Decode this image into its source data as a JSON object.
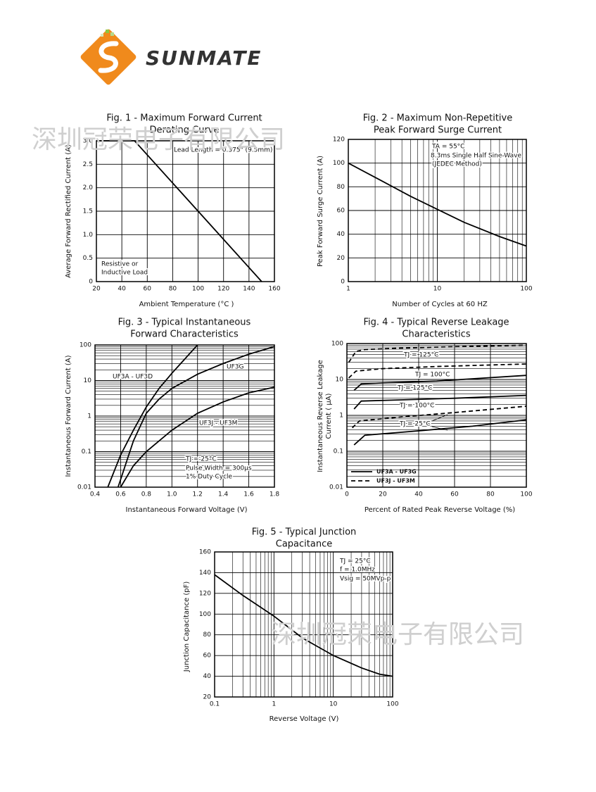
{
  "logo_text": "SUNMATE",
  "watermarks": [
    "深圳冠荣电子有限公司",
    "深圳冠荣电子有限公司"
  ],
  "chart_data": [
    {
      "type": "line",
      "title": [
        "Fig. 1 - Maximum Forward Current",
        "Derating Curve"
      ],
      "xlabel": "Ambient Temperature (°C )",
      "ylabel": "Average Forward Rectified Current (A)",
      "xlim": [
        20,
        160
      ],
      "ylim": [
        0,
        3
      ],
      "xticks": [
        20,
        40,
        60,
        80,
        100,
        120,
        140,
        160
      ],
      "yticks": [
        0,
        0.5,
        {
          "value": 1,
          "label": "1.0"
        },
        1.5,
        {
          "value": 2,
          "label": "2.0"
        },
        2.5,
        {
          "value": 3,
          "label": "3.0"
        }
      ],
      "grid": true,
      "annotations": [
        "Lead Length = 0.375\" (9.5mm)",
        "Resistive or",
        "Inductive Load"
      ],
      "series": [
        {
          "color": "#000000",
          "x": [
            20,
            50,
            150
          ],
          "values": [
            3,
            3,
            0
          ]
        }
      ]
    },
    {
      "type": "line",
      "title": [
        "Fig. 2 - Maximum Non-Repetitive",
        "Peak Forward Surge Current"
      ],
      "xlabel": "Number of Cycles at 60 HZ",
      "ylabel": "Peak Forward Surge Current (A)",
      "xscale": "log",
      "xlim": [
        1,
        100
      ],
      "ylim": [
        0,
        120
      ],
      "xticks": [
        1,
        10,
        100
      ],
      "yticks": [
        0,
        20,
        40,
        60,
        80,
        100,
        120
      ],
      "grid": true,
      "minor_grid": true,
      "annotations": [
        "TA = 55°C",
        "8.3ms Single Half Sine-Wave",
        "(JEDEC Method)"
      ],
      "series": [
        {
          "color": "#000000",
          "x": [
            1,
            2,
            5,
            10,
            20,
            50,
            100
          ],
          "values": [
            100,
            88,
            72,
            61,
            50,
            38,
            30
          ]
        }
      ]
    },
    {
      "type": "line",
      "title": [
        "Fig. 3 - Typical Instantaneous",
        "Forward Characteristics"
      ],
      "xlabel": "Instantaneous Forward Voltage (V)",
      "ylabel": "Instantaneous Forward Current (A)",
      "yscale": "log",
      "xlim": [
        0.4,
        1.8
      ],
      "ylim": [
        0.01,
        100
      ],
      "xticks": [
        0.4,
        0.6,
        0.8,
        {
          "value": 1,
          "label": "1.0"
        },
        1.2,
        1.4,
        1.6,
        1.8
      ],
      "yticks": [
        0.01,
        0.1,
        1,
        10,
        100
      ],
      "grid": true,
      "minor_grid": true,
      "annotations": [
        "TJ = 25°C",
        "Pulse Width = 300μs",
        "1% Duty Cycle"
      ],
      "series": [
        {
          "name": "UF3A - UF3D",
          "color": "#000000",
          "x": [
            0.5,
            0.6,
            0.7,
            0.8,
            0.9,
            1.0,
            1.1,
            1.2
          ],
          "values": [
            0.01,
            0.08,
            0.4,
            1.8,
            6,
            16,
            40,
            100
          ]
        },
        {
          "name": "UF3G",
          "color": "#000000",
          "x": [
            0.58,
            0.7,
            0.8,
            0.9,
            1.0,
            1.2,
            1.4,
            1.6,
            1.8
          ],
          "values": [
            0.01,
            0.2,
            1.2,
            3,
            6,
            15,
            30,
            55,
            90
          ]
        },
        {
          "name": "UF3J - UF3M",
          "color": "#000000",
          "x": [
            0.6,
            0.7,
            0.8,
            1.0,
            1.2,
            1.4,
            1.6,
            1.8
          ],
          "values": [
            0.01,
            0.04,
            0.1,
            0.4,
            1.2,
            2.5,
            4.5,
            6.5
          ]
        }
      ]
    },
    {
      "type": "line",
      "title": [
        "Fig. 4 - Typical Reverse Leakage",
        "Characteristics"
      ],
      "xlabel": "Percent of Rated Peak Reverse Voltage (%)",
      "ylabel": [
        "Instantaneous Reverse Leakage",
        "Current ( μA)"
      ],
      "yscale": "log",
      "xlim": [
        0,
        100
      ],
      "ylim": [
        0.01,
        100
      ],
      "xticks": [
        0,
        20,
        40,
        60,
        80,
        100
      ],
      "yticks": [
        0.01,
        0.1,
        1,
        10,
        100
      ],
      "grid": true,
      "minor_grid": true,
      "legend": "lower-left",
      "series": [
        {
          "name": "UF3A - UF3G",
          "color": "#000000",
          "dash": false,
          "curves": [
            {
              "label": "TJ = 125°C",
              "x": [
                4,
                8,
                20,
                50,
                100
              ],
              "values": [
                5,
                7.5,
                8,
                9,
                13
              ]
            },
            {
              "label": "TJ = 100°C",
              "x": [
                4,
                8,
                30,
                60,
                100
              ],
              "values": [
                1.5,
                2.5,
                2.7,
                3,
                3.6
              ]
            },
            {
              "x": [
                4,
                10,
                40,
                70,
                100
              ],
              "values": [
                0.15,
                0.28,
                0.37,
                0.5,
                0.75
              ]
            }
          ]
        },
        {
          "name": "UF3J - UF3M",
          "color": "#000000",
          "dash": true,
          "curves": [
            {
              "label": "TJ = 125°C",
              "x": [
                1,
                5,
                10,
                30,
                60,
                100
              ],
              "values": [
                30,
                60,
                68,
                75,
                82,
                90
              ]
            },
            {
              "label": "TJ = 100°C",
              "x": [
                1,
                5,
                20,
                50,
                100
              ],
              "values": [
                11,
                17,
                20,
                23,
                27
              ]
            },
            {
              "label": "TJ = 25°C",
              "x": [
                3,
                7,
                30,
                60,
                100
              ],
              "values": [
                0.45,
                0.7,
                0.9,
                1.2,
                1.8
              ]
            }
          ]
        }
      ]
    },
    {
      "type": "line",
      "title": [
        "Fig. 5 - Typical Junction",
        "Capacitance"
      ],
      "xlabel": "Reverse Voltage (V)",
      "ylabel": "Junction Capacitance (pF)",
      "xscale": "log",
      "xlim": [
        0.1,
        100
      ],
      "ylim": [
        20,
        160
      ],
      "xticks": [
        0.1,
        1,
        10,
        100
      ],
      "yticks": [
        20,
        40,
        60,
        80,
        100,
        120,
        140,
        160
      ],
      "grid": true,
      "minor_grid": true,
      "annotations": [
        "TJ = 25°C",
        "f = 1.0MHz",
        "Vsig = 50MVp-p"
      ],
      "series": [
        {
          "color": "#000000",
          "x": [
            0.1,
            0.3,
            1,
            3,
            10,
            30,
            60,
            100
          ],
          "values": [
            138,
            118,
            98,
            77,
            60,
            48,
            42,
            40
          ]
        }
      ]
    }
  ]
}
